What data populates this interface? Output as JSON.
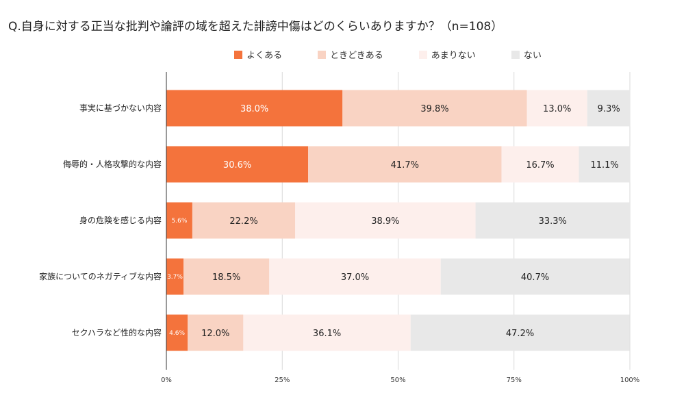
{
  "chart_data": {
    "type": "bar",
    "orientation": "horizontal",
    "stacked": "percent",
    "title": "Q.自身に対する正当な批判や論評の域を超えた誹謗中傷はどのくらいありますか？（n=108）",
    "categories": [
      "事実に基づかない内容",
      "侮辱的・人格攻撃的な内容",
      "身の危険を感じる内容",
      "家族についてのネガティブな内容",
      "セクハラなど性的な内容"
    ],
    "series": [
      {
        "name": "よくある",
        "color": "#f4733c",
        "label_color": "#ffffff",
        "values": [
          38.0,
          30.6,
          5.6,
          3.7,
          4.6
        ],
        "labels": [
          "38.0%",
          "30.6%",
          "5.6%",
          "3.7%",
          "4.6%"
        ]
      },
      {
        "name": "ときどきある",
        "color": "#f9d3c3",
        "label_color": "#222222",
        "values": [
          39.8,
          41.7,
          22.2,
          18.5,
          12.0
        ],
        "labels": [
          "39.8%",
          "41.7%",
          "22.2%",
          "18.5%",
          "12.0%"
        ]
      },
      {
        "name": "あまりない",
        "color": "#fdefec",
        "label_color": "#222222",
        "values": [
          13.0,
          16.7,
          38.9,
          37.0,
          36.1
        ],
        "labels": [
          "13.0%",
          "16.7%",
          "38.9%",
          "37.0%",
          "36.1%"
        ]
      },
      {
        "name": "ない",
        "color": "#e8e8e8",
        "label_color": "#222222",
        "values": [
          9.3,
          11.1,
          33.3,
          40.7,
          47.2
        ],
        "labels": [
          "9.3%",
          "11.1%",
          "33.3%",
          "40.7%",
          "47.2%"
        ]
      }
    ],
    "xlim": [
      0,
      100
    ],
    "x_ticks": [
      "0%",
      "25%",
      "50%",
      "75%",
      "100%"
    ],
    "legend_position": "top",
    "grid": true
  }
}
